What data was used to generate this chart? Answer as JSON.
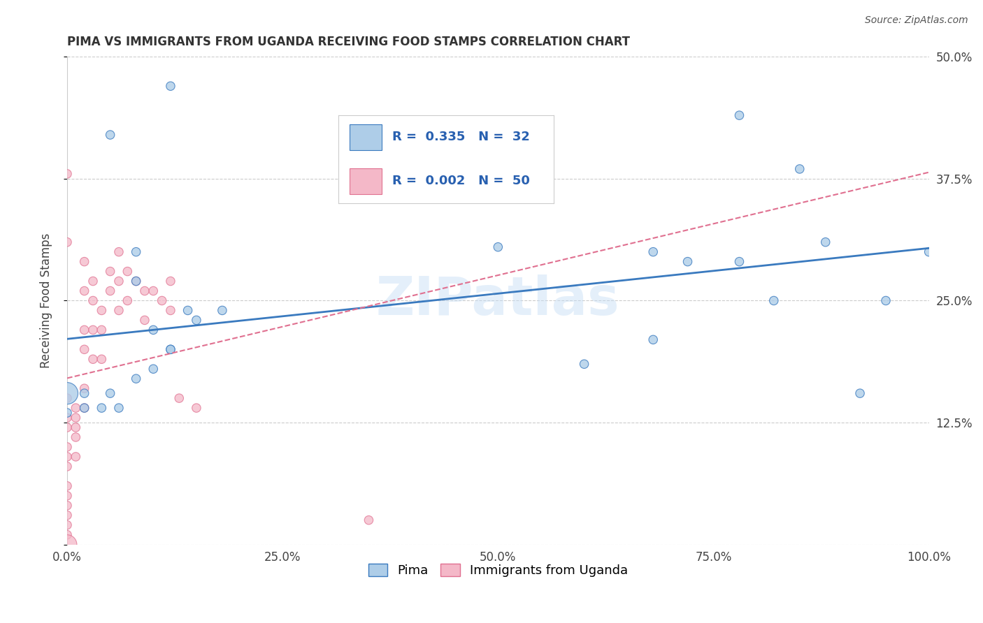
{
  "title": "PIMA VS IMMIGRANTS FROM UGANDA RECEIVING FOOD STAMPS CORRELATION CHART",
  "source": "Source: ZipAtlas.com",
  "ylabel": "Receiving Food Stamps",
  "xlim": [
    0,
    1
  ],
  "ylim": [
    0,
    0.5
  ],
  "xticks": [
    0.0,
    0.25,
    0.5,
    0.75,
    1.0
  ],
  "xtick_labels": [
    "0.0%",
    "25.0%",
    "50.0%",
    "75.0%",
    "100.0%"
  ],
  "yticks": [
    0.0,
    0.125,
    0.25,
    0.375,
    0.5
  ],
  "ytick_labels_right": [
    "",
    "12.5%",
    "25.0%",
    "37.5%",
    "50.0%"
  ],
  "legend_label1": "Pima",
  "legend_label2": "Immigrants from Uganda",
  "R1": 0.335,
  "N1": 32,
  "R2": 0.002,
  "N2": 50,
  "color_blue": "#aecde8",
  "color_pink": "#f4b8c8",
  "color_line_blue": "#3a7abf",
  "color_line_pink": "#e07090",
  "watermark": "ZIPatlas",
  "blue_x": [
    0.12,
    0.05,
    0.08,
    0.08,
    0.1,
    0.12,
    0.14,
    0.15,
    0.12,
    0.18,
    0.05,
    0.06,
    0.08,
    0.1,
    0.02,
    0.02,
    0.04,
    0.0,
    0.0,
    0.5,
    0.68,
    0.72,
    0.78,
    0.78,
    0.82,
    0.88,
    0.95,
    0.85,
    0.68,
    0.6,
    1.0,
    0.92
  ],
  "blue_y": [
    0.47,
    0.42,
    0.3,
    0.27,
    0.22,
    0.2,
    0.24,
    0.23,
    0.2,
    0.24,
    0.155,
    0.14,
    0.17,
    0.18,
    0.155,
    0.14,
    0.14,
    0.155,
    0.135,
    0.305,
    0.3,
    0.29,
    0.29,
    0.44,
    0.25,
    0.31,
    0.25,
    0.385,
    0.21,
    0.185,
    0.3,
    0.155
  ],
  "blue_sizes": [
    80,
    80,
    80,
    80,
    80,
    80,
    80,
    80,
    80,
    80,
    80,
    80,
    80,
    80,
    80,
    80,
    80,
    500,
    80,
    80,
    80,
    80,
    80,
    80,
    80,
    80,
    80,
    80,
    80,
    80,
    80,
    80
  ],
  "pink_x": [
    0.0,
    0.0,
    0.0,
    0.0,
    0.0,
    0.0,
    0.0,
    0.0,
    0.0,
    0.01,
    0.01,
    0.01,
    0.01,
    0.01,
    0.02,
    0.02,
    0.02,
    0.02,
    0.02,
    0.02,
    0.03,
    0.03,
    0.03,
    0.03,
    0.04,
    0.04,
    0.04,
    0.05,
    0.05,
    0.06,
    0.06,
    0.06,
    0.07,
    0.07,
    0.08,
    0.09,
    0.09,
    0.1,
    0.11,
    0.12,
    0.12,
    0.13,
    0.15,
    0.0,
    0.0,
    0.0,
    0.0,
    0.0,
    0.0,
    0.35
  ],
  "pink_y": [
    0.38,
    0.31,
    0.15,
    0.13,
    0.12,
    0.1,
    0.09,
    0.08,
    0.06,
    0.14,
    0.13,
    0.12,
    0.11,
    0.09,
    0.29,
    0.26,
    0.22,
    0.2,
    0.16,
    0.14,
    0.27,
    0.25,
    0.22,
    0.19,
    0.24,
    0.22,
    0.19,
    0.28,
    0.26,
    0.3,
    0.27,
    0.24,
    0.28,
    0.25,
    0.27,
    0.26,
    0.23,
    0.26,
    0.25,
    0.27,
    0.24,
    0.15,
    0.14,
    0.05,
    0.04,
    0.03,
    0.02,
    0.01,
    0.0,
    0.025
  ],
  "pink_sizes": [
    80,
    80,
    80,
    80,
    80,
    80,
    80,
    80,
    80,
    80,
    80,
    80,
    80,
    80,
    80,
    80,
    80,
    80,
    80,
    80,
    80,
    80,
    80,
    80,
    80,
    80,
    80,
    80,
    80,
    80,
    80,
    80,
    80,
    80,
    80,
    80,
    80,
    80,
    80,
    80,
    80,
    80,
    80,
    80,
    80,
    80,
    80,
    80,
    400,
    80
  ]
}
